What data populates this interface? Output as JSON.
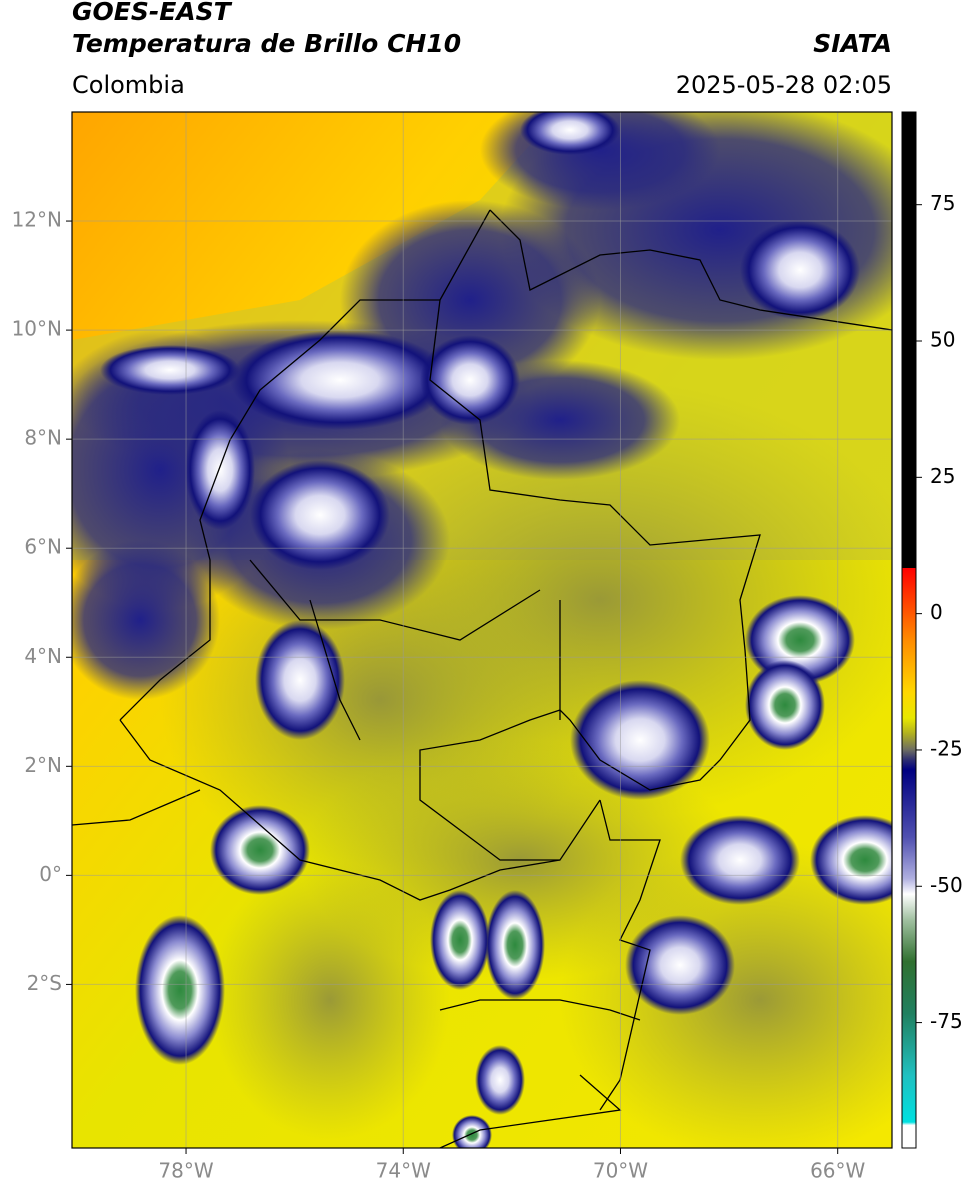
{
  "header": {
    "title": "GOES-EAST",
    "subtitle": "Temperatura de Brillo CH10",
    "source": "SIATA",
    "region": "Colombia",
    "datetime": "2025-05-28 02:05"
  },
  "map": {
    "xlim": [
      -80.1,
      -65
    ],
    "ylim": [
      -5,
      14
    ],
    "xticks": [
      {
        "value": -78,
        "label": "78°W"
      },
      {
        "value": -74,
        "label": "74°W"
      },
      {
        "value": -70,
        "label": "70°W"
      },
      {
        "value": -66,
        "label": "66°W"
      }
    ],
    "yticks": [
      {
        "value": 12,
        "label": "12°N"
      },
      {
        "value": 10,
        "label": "10°N"
      },
      {
        "value": 8,
        "label": "8°N"
      },
      {
        "value": 6,
        "label": "6°N"
      },
      {
        "value": 4,
        "label": "4°N"
      },
      {
        "value": 2,
        "label": "2°N"
      },
      {
        "value": 0,
        "label": "0°"
      },
      {
        "value": -2,
        "label": "2°S"
      }
    ],
    "grid": true
  },
  "colorbar": {
    "lim": [
      -98,
      92
    ],
    "ticks": [
      75,
      50,
      25,
      0,
      -25,
      -50,
      -75
    ]
  }
}
